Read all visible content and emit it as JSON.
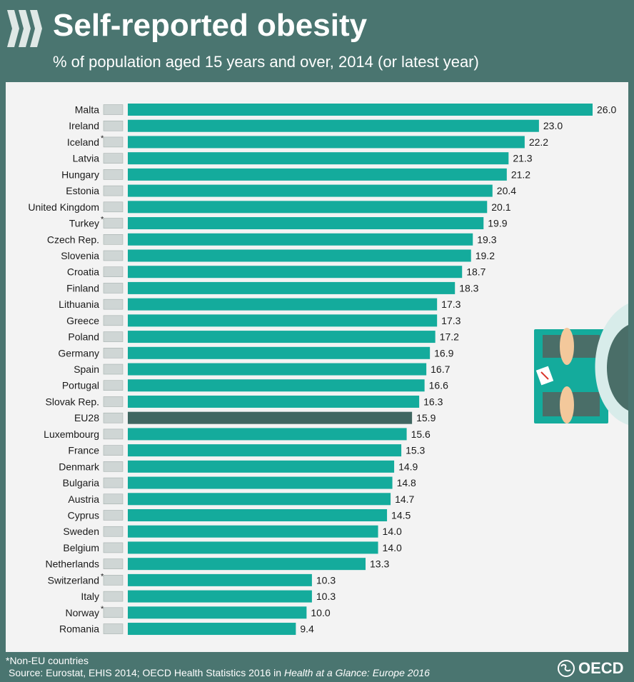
{
  "header": {
    "title": "Self-reported obesity",
    "subtitle": "% of population aged 15 years and over, 2014 (or latest year)"
  },
  "footer": {
    "footnote": "*Non-EU countries",
    "source_prefix": "Source: Eurostat, EHIS 2014; OECD Health Statistics 2016 in ",
    "source_title": "Health at a Glance: Europe 2016",
    "logo_text": "OECD"
  },
  "colors": {
    "background": "#4a7570",
    "panel": "#f3f3f3",
    "bar": "#14ab9c",
    "highlight_bar": "#3f6661"
  },
  "icons": [
    "oecd-chevron-logo",
    "bathroom-scale-illustration",
    "oecd-globe-logo"
  ],
  "chart_data": {
    "type": "bar",
    "orientation": "horizontal",
    "categories": [
      "Malta",
      "Ireland",
      "Iceland",
      "Latvia",
      "Hungary",
      "Estonia",
      "United Kingdom",
      "Turkey",
      "Czech Rep.",
      "Slovenia",
      "Croatia",
      "Finland",
      "Lithuania",
      "Greece",
      "Poland",
      "Germany",
      "Spain",
      "Portugal",
      "Slovak Rep.",
      "EU28",
      "Luxembourg",
      "France",
      "Denmark",
      "Bulgaria",
      "Austria",
      "Cyprus",
      "Sweden",
      "Belgium",
      "Netherlands",
      "Switzerland",
      "Italy",
      "Norway",
      "Romania"
    ],
    "values": [
      26.0,
      23.0,
      22.2,
      21.3,
      21.2,
      20.4,
      20.1,
      19.9,
      19.3,
      19.2,
      18.7,
      18.3,
      17.3,
      17.3,
      17.2,
      16.9,
      16.7,
      16.6,
      16.3,
      15.9,
      15.6,
      15.3,
      14.9,
      14.8,
      14.7,
      14.5,
      14.0,
      14.0,
      13.3,
      10.3,
      10.3,
      10.0,
      9.4
    ],
    "value_labels": [
      "26.0",
      "23.0",
      "22.2",
      "21.3",
      "21.2",
      "20.4",
      "20.1",
      "19.9",
      "19.3",
      "19.2",
      "18.7",
      "18.3",
      "17.3",
      "17.3",
      "17.2",
      "16.9",
      "16.7",
      "16.6",
      "16.3",
      "15.9",
      "15.6",
      "15.3",
      "14.9",
      "14.8",
      "14.7",
      "14.5",
      "14.0",
      "14.0",
      "13.3",
      "10.3",
      "10.3",
      "10.0",
      "9.4"
    ],
    "non_eu": [
      "Iceland",
      "Turkey",
      "Switzerland",
      "Norway"
    ],
    "highlight": "EU28",
    "xlim": [
      0,
      26.0
    ],
    "grid": false,
    "legend": false
  }
}
